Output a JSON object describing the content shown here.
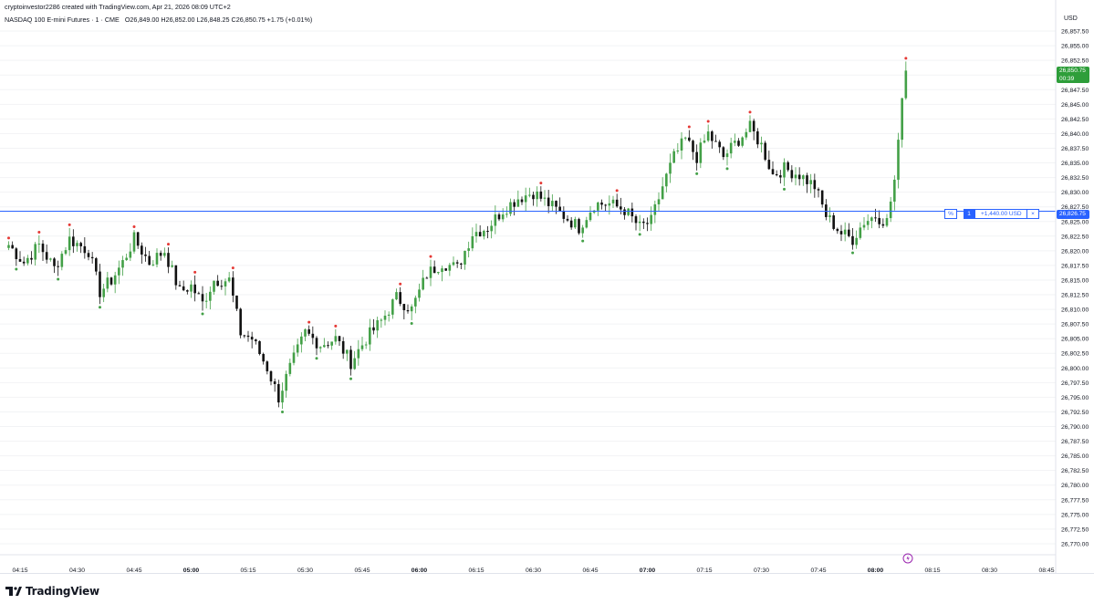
{
  "header": {
    "created_by": "cryptoinvestor2286 created with TradingView.com, Apr 21, 2026 08:09 UTC+2",
    "symbol": "NASDAQ 100 E-mini Futures · 1 · CME",
    "ohlc": "O26,849.00 H26,852.00 L26,848.25 C26,850.75 +1.75 (+0.01%)"
  },
  "currency": "USD",
  "branding": {
    "name": "TradingView"
  },
  "last_price": {
    "label": "26,850.75",
    "countdown": "00:39"
  },
  "position": {
    "percent_label": "%",
    "quantity": "1",
    "pnl": "+1,440.00 USD",
    "close_label": "×",
    "price_label": "26,826.75"
  },
  "colors": {
    "up": "#43a047",
    "down": "#111111",
    "marker_high": "#e53935",
    "marker_low": "#43a047",
    "position_line": "#2962ff",
    "last_price_tag": "#2e9e3a",
    "alert": "#9c27b0"
  },
  "chart_data": {
    "type": "candlestick",
    "ylim": [
      26767.5,
      26860.0
    ],
    "y_tick_step": 2.5,
    "y_tick_labels": [
      "26,857.50",
      "26,855.00",
      "26,852.50",
      "26,850.00",
      "26,847.50",
      "26,845.00",
      "26,842.50",
      "26,840.00",
      "26,837.50",
      "26,835.00",
      "26,832.50",
      "26,830.00",
      "26,827.50",
      "26,825.00",
      "26,822.50",
      "26,820.00",
      "26,817.50",
      "26,815.00",
      "26,812.50",
      "26,810.00",
      "26,807.50",
      "26,805.00",
      "26,802.50",
      "26,800.00",
      "26,797.50",
      "26,795.00",
      "26,792.50",
      "26,790.00",
      "26,787.50",
      "26,785.00",
      "26,782.50",
      "26,780.00",
      "26,777.50",
      "26,775.00",
      "26,772.50",
      "26,770.00"
    ],
    "x_labels": [
      "04:15",
      "04:30",
      "04:45",
      "05:00",
      "05:15",
      "05:30",
      "05:45",
      "06:00",
      "06:15",
      "06:30",
      "06:45",
      "07:00",
      "07:15",
      "07:30",
      "07:45",
      "08:00",
      "08:15",
      "08:30",
      "08:45"
    ],
    "x_labels_bold": [
      "05:00",
      "06:00",
      "07:00",
      "08:00"
    ],
    "position_line_price": 26826.75,
    "last_price": 26850.75,
    "waypoints": [
      {
        "time": "04:12",
        "price": 26821
      },
      {
        "time": "04:16",
        "price": 26818
      },
      {
        "time": "04:20",
        "price": 26821
      },
      {
        "time": "04:24",
        "price": 26817
      },
      {
        "time": "04:28",
        "price": 26822
      },
      {
        "time": "04:33",
        "price": 26820
      },
      {
        "time": "04:36",
        "price": 26813
      },
      {
        "time": "04:39",
        "price": 26815
      },
      {
        "time": "04:42",
        "price": 26818
      },
      {
        "time": "04:45",
        "price": 26822
      },
      {
        "time": "04:49",
        "price": 26818
      },
      {
        "time": "04:53",
        "price": 26820
      },
      {
        "time": "04:57",
        "price": 26813
      },
      {
        "time": "05:00",
        "price": 26814
      },
      {
        "time": "05:03",
        "price": 26811
      },
      {
        "time": "05:06",
        "price": 26815
      },
      {
        "time": "05:10",
        "price": 26815
      },
      {
        "time": "05:13",
        "price": 26806
      },
      {
        "time": "05:16",
        "price": 26805
      },
      {
        "time": "05:20",
        "price": 26800
      },
      {
        "time": "05:23",
        "price": 26795
      },
      {
        "time": "05:26",
        "price": 26800
      },
      {
        "time": "05:30",
        "price": 26806
      },
      {
        "time": "05:34",
        "price": 26804
      },
      {
        "time": "05:38",
        "price": 26805
      },
      {
        "time": "05:42",
        "price": 26801
      },
      {
        "time": "05:46",
        "price": 26805
      },
      {
        "time": "05:50",
        "price": 26808
      },
      {
        "time": "05:54",
        "price": 26812
      },
      {
        "time": "05:58",
        "price": 26810
      },
      {
        "time": "06:02",
        "price": 26816
      },
      {
        "time": "06:06",
        "price": 26818
      },
      {
        "time": "06:10",
        "price": 26817
      },
      {
        "time": "06:14",
        "price": 26823
      },
      {
        "time": "06:18",
        "price": 26824
      },
      {
        "time": "06:22",
        "price": 26827
      },
      {
        "time": "06:26",
        "price": 26829
      },
      {
        "time": "06:30",
        "price": 26830
      },
      {
        "time": "06:34",
        "price": 26828
      },
      {
        "time": "06:38",
        "price": 26826
      },
      {
        "time": "06:42",
        "price": 26824
      },
      {
        "time": "06:46",
        "price": 26828
      },
      {
        "time": "06:50",
        "price": 26828
      },
      {
        "time": "06:54",
        "price": 26827
      },
      {
        "time": "06:58",
        "price": 26824
      },
      {
        "time": "07:01",
        "price": 26825
      },
      {
        "time": "07:04",
        "price": 26831
      },
      {
        "time": "07:07",
        "price": 26836
      },
      {
        "time": "07:10",
        "price": 26839
      },
      {
        "time": "07:13",
        "price": 26836
      },
      {
        "time": "07:16",
        "price": 26840
      },
      {
        "time": "07:20",
        "price": 26836
      },
      {
        "time": "07:24",
        "price": 26839
      },
      {
        "time": "07:27",
        "price": 26841
      },
      {
        "time": "07:30",
        "price": 26838
      },
      {
        "time": "07:33",
        "price": 26833
      },
      {
        "time": "07:36",
        "price": 26834
      },
      {
        "time": "07:40",
        "price": 26833
      },
      {
        "time": "07:44",
        "price": 26831
      },
      {
        "time": "07:47",
        "price": 26826
      },
      {
        "time": "07:51",
        "price": 26823
      },
      {
        "time": "07:54",
        "price": 26822
      },
      {
        "time": "07:57",
        "price": 26825
      },
      {
        "time": "08:00",
        "price": 26826
      },
      {
        "time": "08:03",
        "price": 26825
      },
      {
        "time": "08:05",
        "price": 26832
      },
      {
        "time": "08:06",
        "price": 26838
      },
      {
        "time": "08:07",
        "price": 26847
      },
      {
        "time": "08:08",
        "price": 26850
      }
    ]
  }
}
